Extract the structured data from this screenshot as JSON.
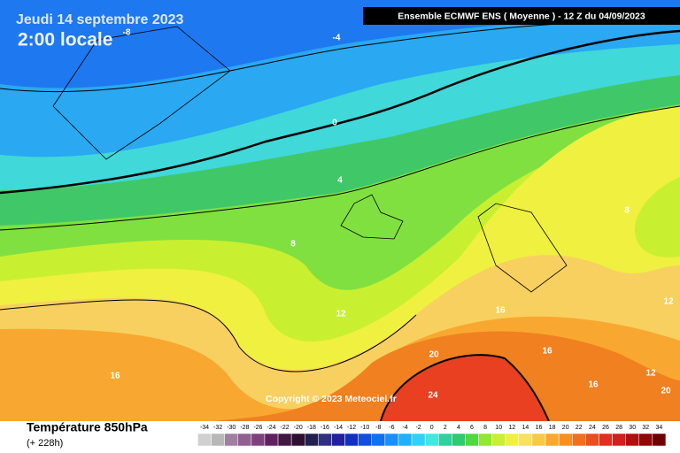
{
  "header": {
    "date": "Jeudi 14 septembre 2023",
    "time": "2:00 locale",
    "model": "Ensemble ECMWF ENS  ( Moyenne )  -  12 Z du 04/09/2023"
  },
  "copyright": "Copyright © 2023 Meteociel.fr",
  "footer": {
    "title": "Température 850hPa",
    "lead": "(+ 228h)"
  },
  "contour_labels": [
    -8,
    -4,
    0,
    4,
    8,
    8,
    12,
    12,
    16,
    16,
    16,
    16,
    20,
    24,
    20,
    12
  ],
  "legend": {
    "labels": [
      -34,
      -32,
      -30,
      -28,
      -26,
      -24,
      -22,
      -20,
      -18,
      -16,
      -14,
      -12,
      -10,
      -8,
      -6,
      -4,
      -2,
      0,
      2,
      4,
      6,
      8,
      10,
      12,
      14,
      16,
      18,
      20,
      22,
      24,
      26,
      28,
      30,
      32,
      34
    ],
    "colors": [
      "#d0d0d0",
      "#b8b8b8",
      "#a080a0",
      "#906090",
      "#804080",
      "#602060",
      "#401840",
      "#301030",
      "#202050",
      "#303080",
      "#2020a0",
      "#1030c0",
      "#1050e0",
      "#1070f0",
      "#1890ff",
      "#20b0ff",
      "#30d0ff",
      "#40e8e0",
      "#30d0a0",
      "#30c870",
      "#50d840",
      "#90e830",
      "#c8f030",
      "#f0f040",
      "#f8e060",
      "#f8c848",
      "#f8a830",
      "#f89020",
      "#f07020",
      "#e85020",
      "#e03020",
      "#d02020",
      "#b01010",
      "#900808",
      "#700000"
    ]
  }
}
